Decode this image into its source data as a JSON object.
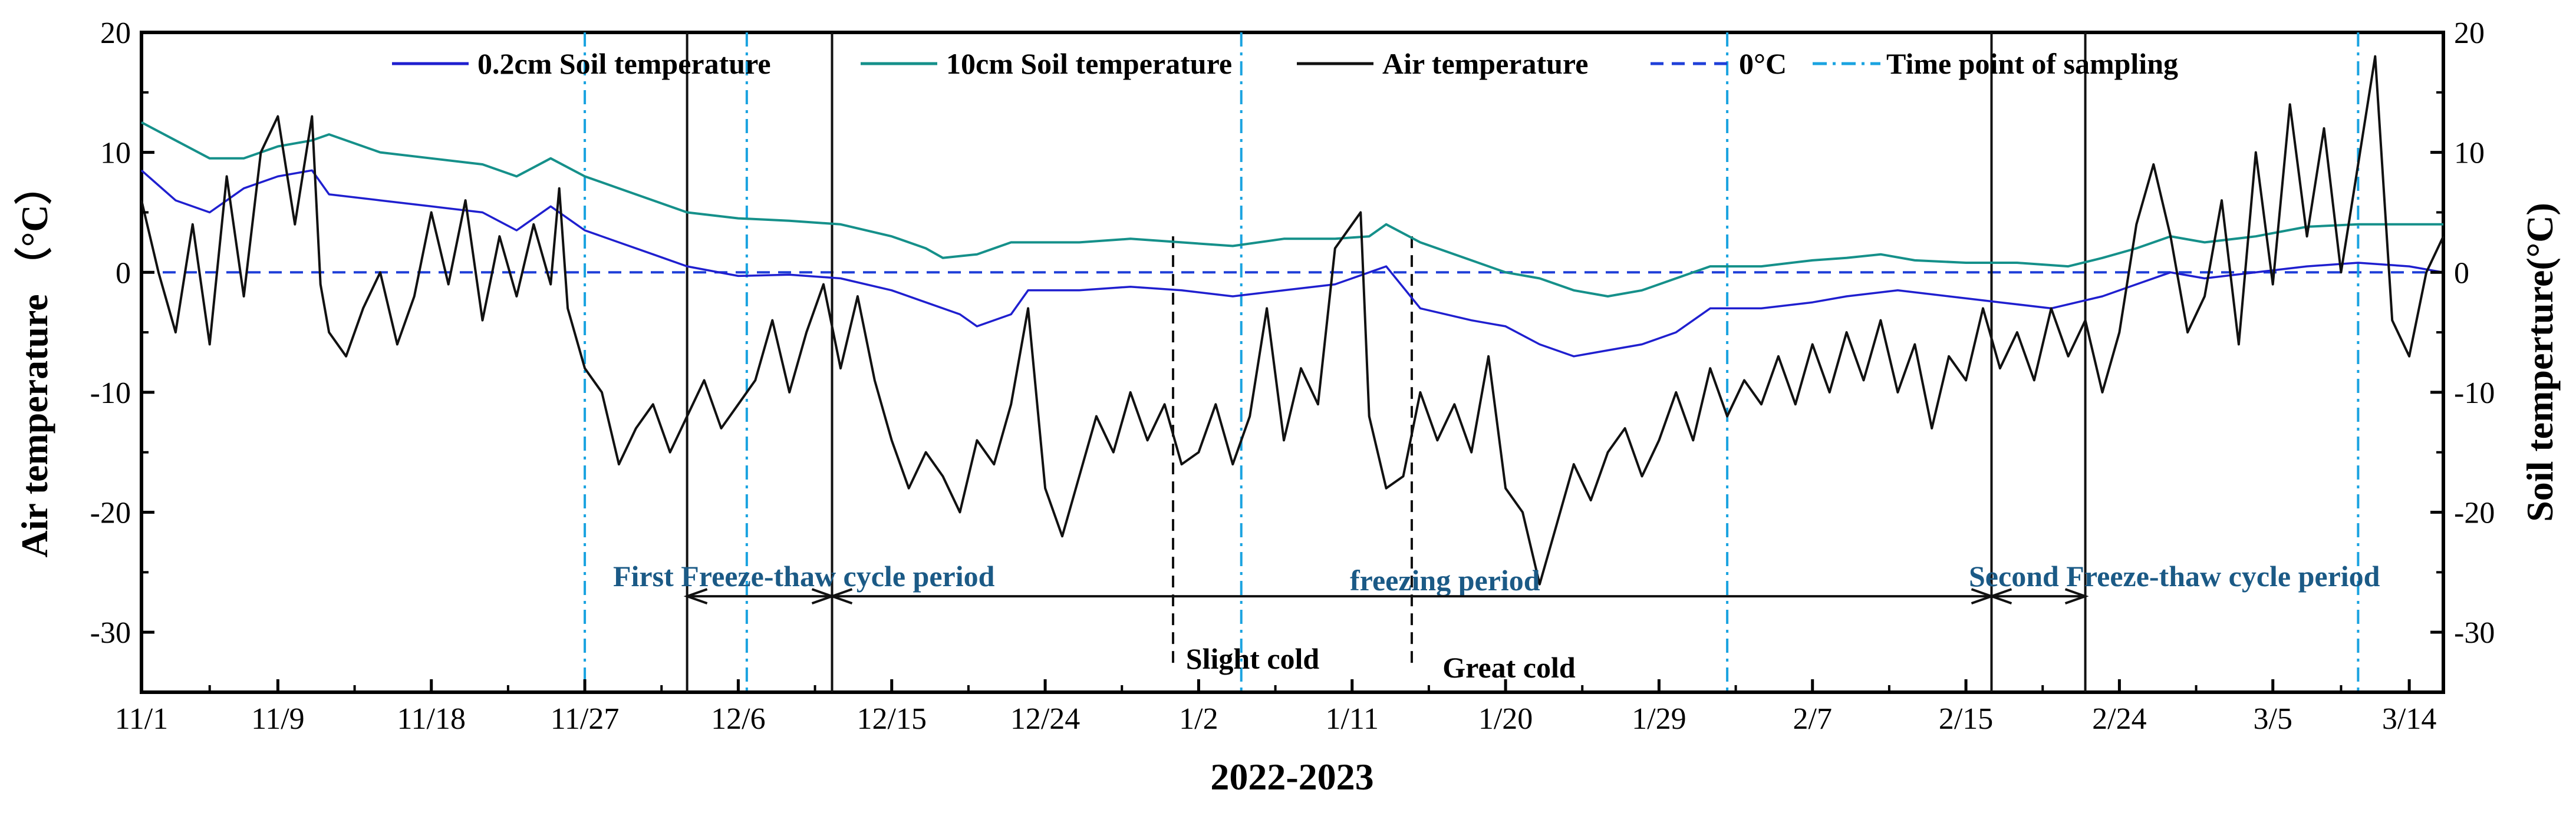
{
  "chart_data": {
    "type": "line",
    "x_axis": {
      "title": "2022-2023",
      "day_range": [
        0,
        135
      ],
      "ticks": [
        {
          "day": 0,
          "label": "11/1"
        },
        {
          "day": 8,
          "label": "11/9"
        },
        {
          "day": 17,
          "label": "11/18"
        },
        {
          "day": 26,
          "label": "11/27"
        },
        {
          "day": 35,
          "label": "12/6"
        },
        {
          "day": 44,
          "label": "12/15"
        },
        {
          "day": 53,
          "label": "12/24"
        },
        {
          "day": 62,
          "label": "1/2"
        },
        {
          "day": 71,
          "label": "1/11"
        },
        {
          "day": 80,
          "label": "1/20"
        },
        {
          "day": 89,
          "label": "1/29"
        },
        {
          "day": 98,
          "label": "2/7"
        },
        {
          "day": 107,
          "label": "2/15"
        },
        {
          "day": 116,
          "label": "2/24"
        },
        {
          "day": 125,
          "label": "3/5"
        },
        {
          "day": 133,
          "label": "3/14"
        }
      ]
    },
    "y_left": {
      "title": "Air temperature （°C）",
      "ylim": [
        -35,
        20
      ],
      "ticks": [
        20,
        10,
        0,
        -10,
        -20,
        -30
      ]
    },
    "y_right": {
      "title": "Soil temperture(°C)",
      "ylim": [
        -35,
        20
      ],
      "ticks": [
        20,
        10,
        0,
        -10,
        -20,
        -30
      ]
    },
    "legend": {
      "placement": "top",
      "entries": [
        {
          "label": "0.2cm Soil temperature",
          "color": "#1f1fcf",
          "style": "solid"
        },
        {
          "label": "10cm Soil temperature",
          "color": "#15908a",
          "style": "solid"
        },
        {
          "label": "Air temperature",
          "color": "#111111",
          "style": "solid"
        },
        {
          "label": "0°C",
          "color": "#1f3fd8",
          "style": "dashed"
        },
        {
          "label": "Time point of sampling",
          "color": "#1aa3e0",
          "style": "dashdot"
        }
      ]
    },
    "series": [
      {
        "name": "0.2cm Soil temperature",
        "color": "#1f1fcf",
        "points": [
          [
            0,
            8.5
          ],
          [
            2,
            6
          ],
          [
            4,
            5
          ],
          [
            6,
            7
          ],
          [
            8,
            8
          ],
          [
            10,
            8.5
          ],
          [
            11,
            6.5
          ],
          [
            14,
            6
          ],
          [
            17,
            5.5
          ],
          [
            20,
            5
          ],
          [
            22,
            3.5
          ],
          [
            24,
            5.5
          ],
          [
            26,
            3.5
          ],
          [
            28,
            2.5
          ],
          [
            30,
            1.5
          ],
          [
            32,
            0.5
          ],
          [
            35,
            -0.3
          ],
          [
            38,
            -0.2
          ],
          [
            41,
            -0.5
          ],
          [
            44,
            -1.5
          ],
          [
            46,
            -2.5
          ],
          [
            48,
            -3.5
          ],
          [
            49,
            -4.5
          ],
          [
            51,
            -3.5
          ],
          [
            52,
            -1.5
          ],
          [
            55,
            -1.5
          ],
          [
            58,
            -1.2
          ],
          [
            61,
            -1.5
          ],
          [
            64,
            -2
          ],
          [
            67,
            -1.5
          ],
          [
            70,
            -1
          ],
          [
            72,
            0
          ],
          [
            73,
            0.5
          ],
          [
            75,
            -3
          ],
          [
            78,
            -4
          ],
          [
            80,
            -4.5
          ],
          [
            82,
            -6
          ],
          [
            84,
            -7
          ],
          [
            86,
            -6.5
          ],
          [
            88,
            -6
          ],
          [
            90,
            -5
          ],
          [
            92,
            -3
          ],
          [
            95,
            -3
          ],
          [
            98,
            -2.5
          ],
          [
            100,
            -2
          ],
          [
            103,
            -1.5
          ],
          [
            106,
            -2
          ],
          [
            109,
            -2.5
          ],
          [
            112,
            -3
          ],
          [
            115,
            -2
          ],
          [
            117,
            -1
          ],
          [
            119,
            0
          ],
          [
            121,
            -0.5
          ],
          [
            124,
            0
          ],
          [
            127,
            0.5
          ],
          [
            130,
            0.8
          ],
          [
            133,
            0.5
          ],
          [
            135,
            0
          ]
        ]
      },
      {
        "name": "10cm Soil temperature",
        "color": "#15908a",
        "points": [
          [
            0,
            12.5
          ],
          [
            2,
            11
          ],
          [
            4,
            9.5
          ],
          [
            6,
            9.5
          ],
          [
            8,
            10.5
          ],
          [
            10,
            11
          ],
          [
            11,
            11.5
          ],
          [
            14,
            10
          ],
          [
            17,
            9.5
          ],
          [
            20,
            9
          ],
          [
            22,
            8
          ],
          [
            24,
            9.5
          ],
          [
            26,
            8
          ],
          [
            28,
            7
          ],
          [
            30,
            6
          ],
          [
            32,
            5
          ],
          [
            35,
            4.5
          ],
          [
            38,
            4.3
          ],
          [
            41,
            4
          ],
          [
            44,
            3
          ],
          [
            46,
            2
          ],
          [
            47,
            1.2
          ],
          [
            49,
            1.5
          ],
          [
            51,
            2.5
          ],
          [
            55,
            2.5
          ],
          [
            58,
            2.8
          ],
          [
            61,
            2.5
          ],
          [
            64,
            2.2
          ],
          [
            67,
            2.8
          ],
          [
            70,
            2.8
          ],
          [
            72,
            3
          ],
          [
            73,
            4
          ],
          [
            75,
            2.5
          ],
          [
            78,
            1
          ],
          [
            80,
            0
          ],
          [
            82,
            -0.5
          ],
          [
            84,
            -1.5
          ],
          [
            86,
            -2
          ],
          [
            88,
            -1.5
          ],
          [
            90,
            -0.5
          ],
          [
            92,
            0.5
          ],
          [
            95,
            0.5
          ],
          [
            98,
            1
          ],
          [
            100,
            1.2
          ],
          [
            102,
            1.5
          ],
          [
            104,
            1
          ],
          [
            107,
            0.8
          ],
          [
            110,
            0.8
          ],
          [
            113,
            0.5
          ],
          [
            115,
            1.2
          ],
          [
            117,
            2
          ],
          [
            119,
            3
          ],
          [
            121,
            2.5
          ],
          [
            124,
            3
          ],
          [
            127,
            3.8
          ],
          [
            130,
            4
          ],
          [
            133,
            4
          ],
          [
            135,
            4
          ]
        ]
      },
      {
        "name": "Air temperature",
        "color": "#111111",
        "points": [
          [
            0,
            6
          ],
          [
            1,
            0
          ],
          [
            2,
            -5
          ],
          [
            3,
            4
          ],
          [
            4,
            -6
          ],
          [
            5,
            8
          ],
          [
            6,
            -2
          ],
          [
            7,
            10
          ],
          [
            8,
            13
          ],
          [
            9,
            4
          ],
          [
            10,
            13
          ],
          [
            10.5,
            -1
          ],
          [
            11,
            -5
          ],
          [
            12,
            -7
          ],
          [
            13,
            -3
          ],
          [
            14,
            0
          ],
          [
            15,
            -6
          ],
          [
            16,
            -2
          ],
          [
            17,
            5
          ],
          [
            18,
            -1
          ],
          [
            19,
            6
          ],
          [
            20,
            -4
          ],
          [
            21,
            3
          ],
          [
            22,
            -2
          ],
          [
            23,
            4
          ],
          [
            24,
            -1
          ],
          [
            24.5,
            7
          ],
          [
            25,
            -3
          ],
          [
            26,
            -8
          ],
          [
            27,
            -10
          ],
          [
            28,
            -16
          ],
          [
            29,
            -13
          ],
          [
            30,
            -11
          ],
          [
            31,
            -15
          ],
          [
            32,
            -12
          ],
          [
            33,
            -9
          ],
          [
            34,
            -13
          ],
          [
            35,
            -11
          ],
          [
            36,
            -9
          ],
          [
            37,
            -4
          ],
          [
            38,
            -10
          ],
          [
            39,
            -5
          ],
          [
            40,
            -1
          ],
          [
            41,
            -8
          ],
          [
            42,
            -2
          ],
          [
            43,
            -9
          ],
          [
            44,
            -14
          ],
          [
            45,
            -18
          ],
          [
            46,
            -15
          ],
          [
            47,
            -17
          ],
          [
            48,
            -20
          ],
          [
            49,
            -14
          ],
          [
            50,
            -16
          ],
          [
            51,
            -11
          ],
          [
            52,
            -3
          ],
          [
            53,
            -18
          ],
          [
            54,
            -22
          ],
          [
            55,
            -17
          ],
          [
            56,
            -12
          ],
          [
            57,
            -15
          ],
          [
            58,
            -10
          ],
          [
            59,
            -14
          ],
          [
            60,
            -11
          ],
          [
            61,
            -16
          ],
          [
            62,
            -15
          ],
          [
            63,
            -11
          ],
          [
            64,
            -16
          ],
          [
            65,
            -12
          ],
          [
            66,
            -3
          ],
          [
            67,
            -14
          ],
          [
            68,
            -8
          ],
          [
            69,
            -11
          ],
          [
            70,
            2
          ],
          [
            71,
            4
          ],
          [
            71.5,
            5
          ],
          [
            72,
            -12
          ],
          [
            73,
            -18
          ],
          [
            74,
            -17
          ],
          [
            75,
            -10
          ],
          [
            76,
            -14
          ],
          [
            77,
            -11
          ],
          [
            78,
            -15
          ],
          [
            79,
            -7
          ],
          [
            80,
            -18
          ],
          [
            81,
            -20
          ],
          [
            82,
            -26
          ],
          [
            83,
            -21
          ],
          [
            84,
            -16
          ],
          [
            85,
            -19
          ],
          [
            86,
            -15
          ],
          [
            87,
            -13
          ],
          [
            88,
            -17
          ],
          [
            89,
            -14
          ],
          [
            90,
            -10
          ],
          [
            91,
            -14
          ],
          [
            92,
            -8
          ],
          [
            93,
            -12
          ],
          [
            94,
            -9
          ],
          [
            95,
            -11
          ],
          [
            96,
            -7
          ],
          [
            97,
            -11
          ],
          [
            98,
            -6
          ],
          [
            99,
            -10
          ],
          [
            100,
            -5
          ],
          [
            101,
            -9
          ],
          [
            102,
            -4
          ],
          [
            103,
            -10
          ],
          [
            104,
            -6
          ],
          [
            105,
            -13
          ],
          [
            106,
            -7
          ],
          [
            107,
            -9
          ],
          [
            108,
            -3
          ],
          [
            109,
            -8
          ],
          [
            110,
            -5
          ],
          [
            111,
            -9
          ],
          [
            112,
            -3
          ],
          [
            113,
            -7
          ],
          [
            114,
            -4
          ],
          [
            115,
            -10
          ],
          [
            116,
            -5
          ],
          [
            117,
            4
          ],
          [
            118,
            9
          ],
          [
            119,
            3
          ],
          [
            120,
            -5
          ],
          [
            121,
            -2
          ],
          [
            122,
            6
          ],
          [
            123,
            -6
          ],
          [
            124,
            10
          ],
          [
            125,
            -1
          ],
          [
            126,
            14
          ],
          [
            127,
            3
          ],
          [
            128,
            12
          ],
          [
            129,
            0
          ],
          [
            130,
            9
          ],
          [
            131,
            18
          ],
          [
            132,
            -4
          ],
          [
            133,
            -7
          ],
          [
            134,
            0
          ],
          [
            135,
            3
          ]
        ]
      }
    ],
    "zero_line": {
      "label": "0°C",
      "value": 0
    },
    "sampling_days": [
      26,
      35.5,
      64.5,
      93,
      130
    ],
    "phase_lines_solid": [
      32,
      40.5,
      108.5,
      114
    ],
    "phase_lines_dashed": [
      60.5,
      74.5
    ],
    "annotations": {
      "slight_cold": "Slight cold",
      "great_cold": "Great cold"
    },
    "periods": [
      {
        "label": "First Freeze-thaw cycle period",
        "from": 32,
        "to": 40.5,
        "text_day": 24.5
      },
      {
        "label": "freezing period",
        "from": 40.5,
        "to": 108.5,
        "text_day": 65.5
      },
      {
        "label": "Second Freeze-thaw cycle period",
        "from": 108.5,
        "to": 114,
        "text_day": 102
      }
    ]
  }
}
